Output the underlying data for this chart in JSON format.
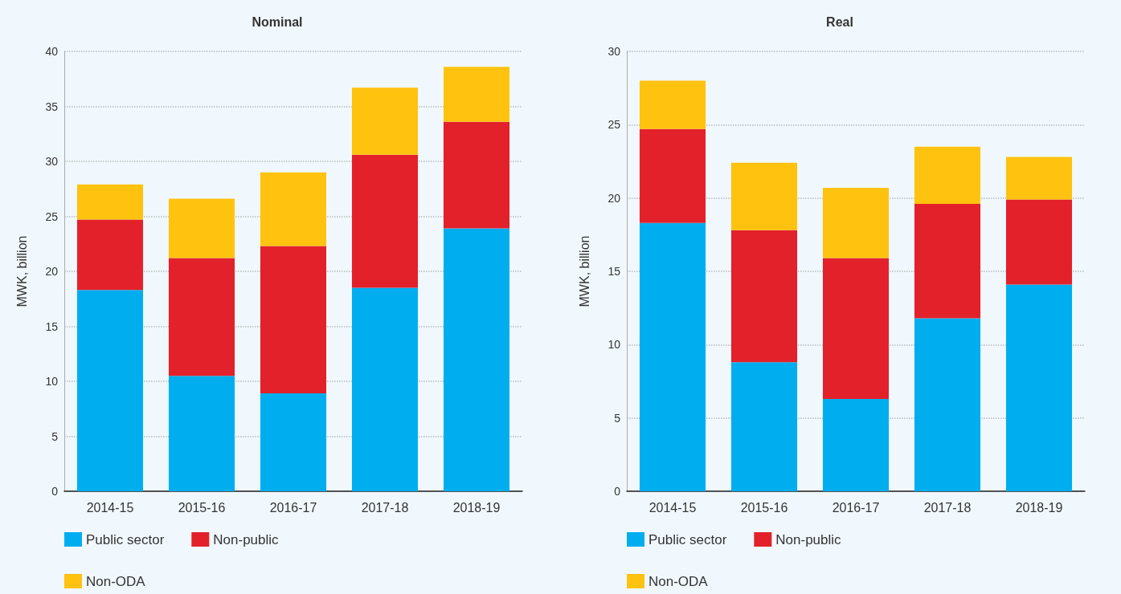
{
  "chart_data": [
    {
      "type": "bar",
      "title": "Nominal",
      "ylabel": "MWK, billion",
      "categories": [
        "2014-15",
        "2015-16",
        "2016-17",
        "2017-18",
        "2018-19"
      ],
      "stacked": true,
      "ylim": [
        0,
        40
      ],
      "yticks": [
        0,
        5,
        10,
        15,
        20,
        25,
        30,
        35,
        40
      ],
      "grid": "y",
      "legend": "bottom left",
      "series": [
        {
          "name": "Public sector",
          "color": "#00aeef",
          "values": [
            18.3,
            10.5,
            8.9,
            18.5,
            23.9
          ]
        },
        {
          "name": "Non-public",
          "color": "#e3212b",
          "values": [
            6.4,
            10.7,
            13.4,
            12.1,
            9.7
          ]
        },
        {
          "name": "Non-ODA",
          "color": "#fec20f",
          "values": [
            3.2,
            5.4,
            6.7,
            6.1,
            5.0
          ]
        }
      ]
    },
    {
      "type": "bar",
      "title": "Real",
      "ylabel": "MWK, billion",
      "categories": [
        "2014-15",
        "2015-16",
        "2016-17",
        "2017-18",
        "2018-19"
      ],
      "stacked": true,
      "ylim": [
        0,
        30
      ],
      "yticks": [
        0,
        5,
        10,
        15,
        20,
        25,
        30
      ],
      "grid": "y",
      "legend": "bottom left",
      "series": [
        {
          "name": "Public sector",
          "color": "#00aeef",
          "values": [
            18.3,
            8.8,
            6.3,
            11.8,
            14.1
          ]
        },
        {
          "name": "Non-public",
          "color": "#e3212b",
          "values": [
            6.4,
            9.0,
            9.6,
            7.8,
            5.8
          ]
        },
        {
          "name": "Non-ODA",
          "color": "#fec20f",
          "values": [
            3.3,
            4.6,
            4.8,
            3.9,
            2.9
          ]
        }
      ]
    }
  ]
}
